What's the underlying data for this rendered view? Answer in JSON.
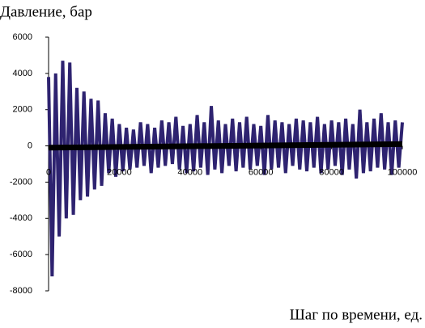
{
  "chart_data": {
    "type": "line",
    "title": "Давление, бар",
    "x_label": "Шаг по времени, ед.",
    "x": [
      0,
      1000,
      2000,
      3000,
      4000,
      5000,
      6000,
      7000,
      8000,
      9000,
      10000,
      11000,
      12000,
      13000,
      14000,
      15000,
      16000,
      17000,
      18000,
      19000,
      20000,
      21000,
      22000,
      23000,
      24000,
      25000,
      26000,
      27000,
      28000,
      29000,
      30000,
      31000,
      32000,
      33000,
      34000,
      35000,
      36000,
      37000,
      38000,
      39000,
      40000,
      41000,
      42000,
      43000,
      44000,
      45000,
      46000,
      47000,
      48000,
      49000,
      50000,
      51000,
      52000,
      53000,
      54000,
      55000,
      56000,
      57000,
      58000,
      59000,
      60000,
      61000,
      62000,
      63000,
      64000,
      65000,
      66000,
      67000,
      68000,
      69000,
      70000,
      71000,
      72000,
      73000,
      74000,
      75000,
      76000,
      77000,
      78000,
      79000,
      80000,
      81000,
      82000,
      83000,
      84000,
      85000,
      86000,
      87000,
      88000,
      89000,
      90000,
      91000,
      92000,
      93000,
      94000,
      95000,
      96000,
      97000,
      98000,
      99000,
      100000
    ],
    "series": [
      {
        "color": "#2e2370",
        "values": [
          3800,
          -7200,
          4000,
          -5000,
          4700,
          -4000,
          4600,
          -3800,
          3200,
          -3000,
          3000,
          -2800,
          2600,
          -2400,
          2500,
          -2200,
          1800,
          -1500,
          1500,
          -1700,
          1200,
          -1400,
          1000,
          -1300,
          900,
          -1200,
          1300,
          -1100,
          1200,
          -1500,
          1000,
          -1200,
          1400,
          -1100,
          1300,
          -1000,
          1600,
          -1300,
          1100,
          -1500,
          1200,
          -1400,
          1700,
          -1200,
          1300,
          -1600,
          2200,
          -1300,
          1400,
          -1500,
          1200,
          -1100,
          1500,
          -1400,
          1300,
          -1200,
          1600,
          -1300,
          1200,
          -1100,
          1100,
          -1600,
          1700,
          -1300,
          1400,
          -1200,
          1300,
          -1500,
          1200,
          -1100,
          1500,
          -1300,
          1400,
          -1400,
          1300,
          -1200,
          1600,
          -1500,
          1200,
          -1300,
          1400,
          -1100,
          1300,
          -1600,
          1500,
          -1300,
          1200,
          -1800,
          2000,
          -1500,
          1300,
          -1400,
          1500,
          -1200,
          1800,
          -1300,
          1300,
          -1600,
          1400,
          -1200,
          1300
        ]
      },
      {
        "color": "#000000",
        "x": [
          0,
          100000
        ],
        "values": [
          -100,
          100
        ]
      }
    ],
    "xlim": [
      0,
      100000
    ],
    "xticks": [
      0,
      20000,
      40000,
      60000,
      80000,
      100000
    ],
    "ylim": [
      -8000,
      6000
    ],
    "yticks": [
      -8000,
      -6000,
      -4000,
      -2000,
      0,
      2000,
      4000,
      6000
    ]
  }
}
